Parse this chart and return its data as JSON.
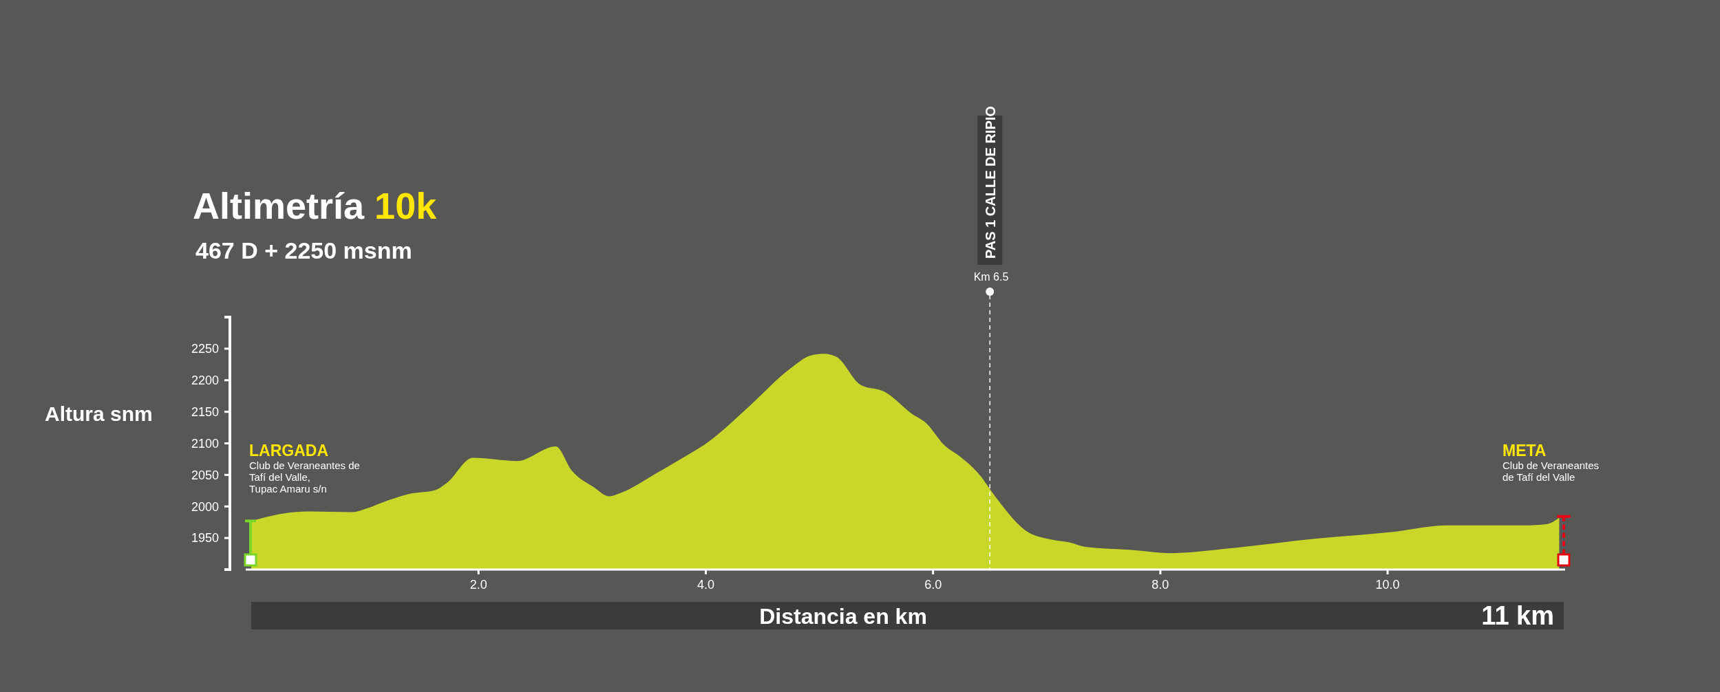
{
  "chart_data": {
    "type": "area",
    "title": "Altimetría 10k",
    "subtitle": "467 D + 2250 msnm",
    "xlabel": "Distancia en km",
    "ylabel": "Altura snm",
    "x": [
      0,
      0.38,
      0.52,
      0.89,
      1.02,
      1.21,
      1.39,
      1.62,
      1.72,
      1.95,
      2.34,
      2.68,
      2.82,
      3.01,
      3.15,
      3.26,
      3.56,
      3.75,
      4.02,
      4.39,
      4.74,
      4.92,
      5.04,
      5.15,
      5.36,
      5.57,
      5.82,
      5.94,
      6.1,
      6.23,
      6.4,
      6.55,
      6.83,
      7.06,
      7.2,
      7.34,
      7.75,
      8.08,
      8.68,
      9.37,
      10.06,
      10.52,
      11.21,
      11.4,
      11.51
    ],
    "series": [
      {
        "color": "#c8d72a",
        "values": [
          1977,
          1991,
          1992,
          1991,
          1997,
          2010,
          2020,
          2026,
          2037,
          2077,
          2072,
          2095,
          2057,
          2031,
          2016,
          2022,
          2052,
          2072,
          2102,
          2160,
          2218,
          2239,
          2242,
          2237,
          2193,
          2182,
          2146,
          2132,
          2097,
          2080,
          2052,
          2015,
          1960,
          1947,
          1943,
          1936,
          1931,
          1926,
          1935,
          1949,
          1960,
          1970,
          1970,
          1972,
          1982
        ]
      }
    ],
    "xlim": [
      0,
      11.55
    ],
    "xticks": [
      {
        "value": 2,
        "label": "2.0"
      },
      {
        "value": 4,
        "label": "4.0"
      },
      {
        "value": 6,
        "label": "6.0"
      },
      {
        "value": 8,
        "label": "8.0"
      },
      {
        "value": 10,
        "label": "10.0"
      }
    ],
    "ylim": [
      1900,
      2300
    ],
    "yticks": [
      1950,
      2000,
      2050,
      2100,
      2150,
      2200,
      2250
    ],
    "ref_lines": [
      {
        "axis": "x",
        "value": 6.5,
        "label": "PAS 1 CALLE DE RIPIO",
        "line_style": "dashed",
        "color": "#ffffff"
      }
    ],
    "annotations": [
      "LARGADA",
      "Club de Veraneantes de\nTafí del Valle,\nTupac Amaru s/n",
      "META",
      "Club de Veraneantes\nde Tafí del Valle",
      "Km 6.5",
      "11 km"
    ],
    "grid": false,
    "marker": "none"
  }
}
